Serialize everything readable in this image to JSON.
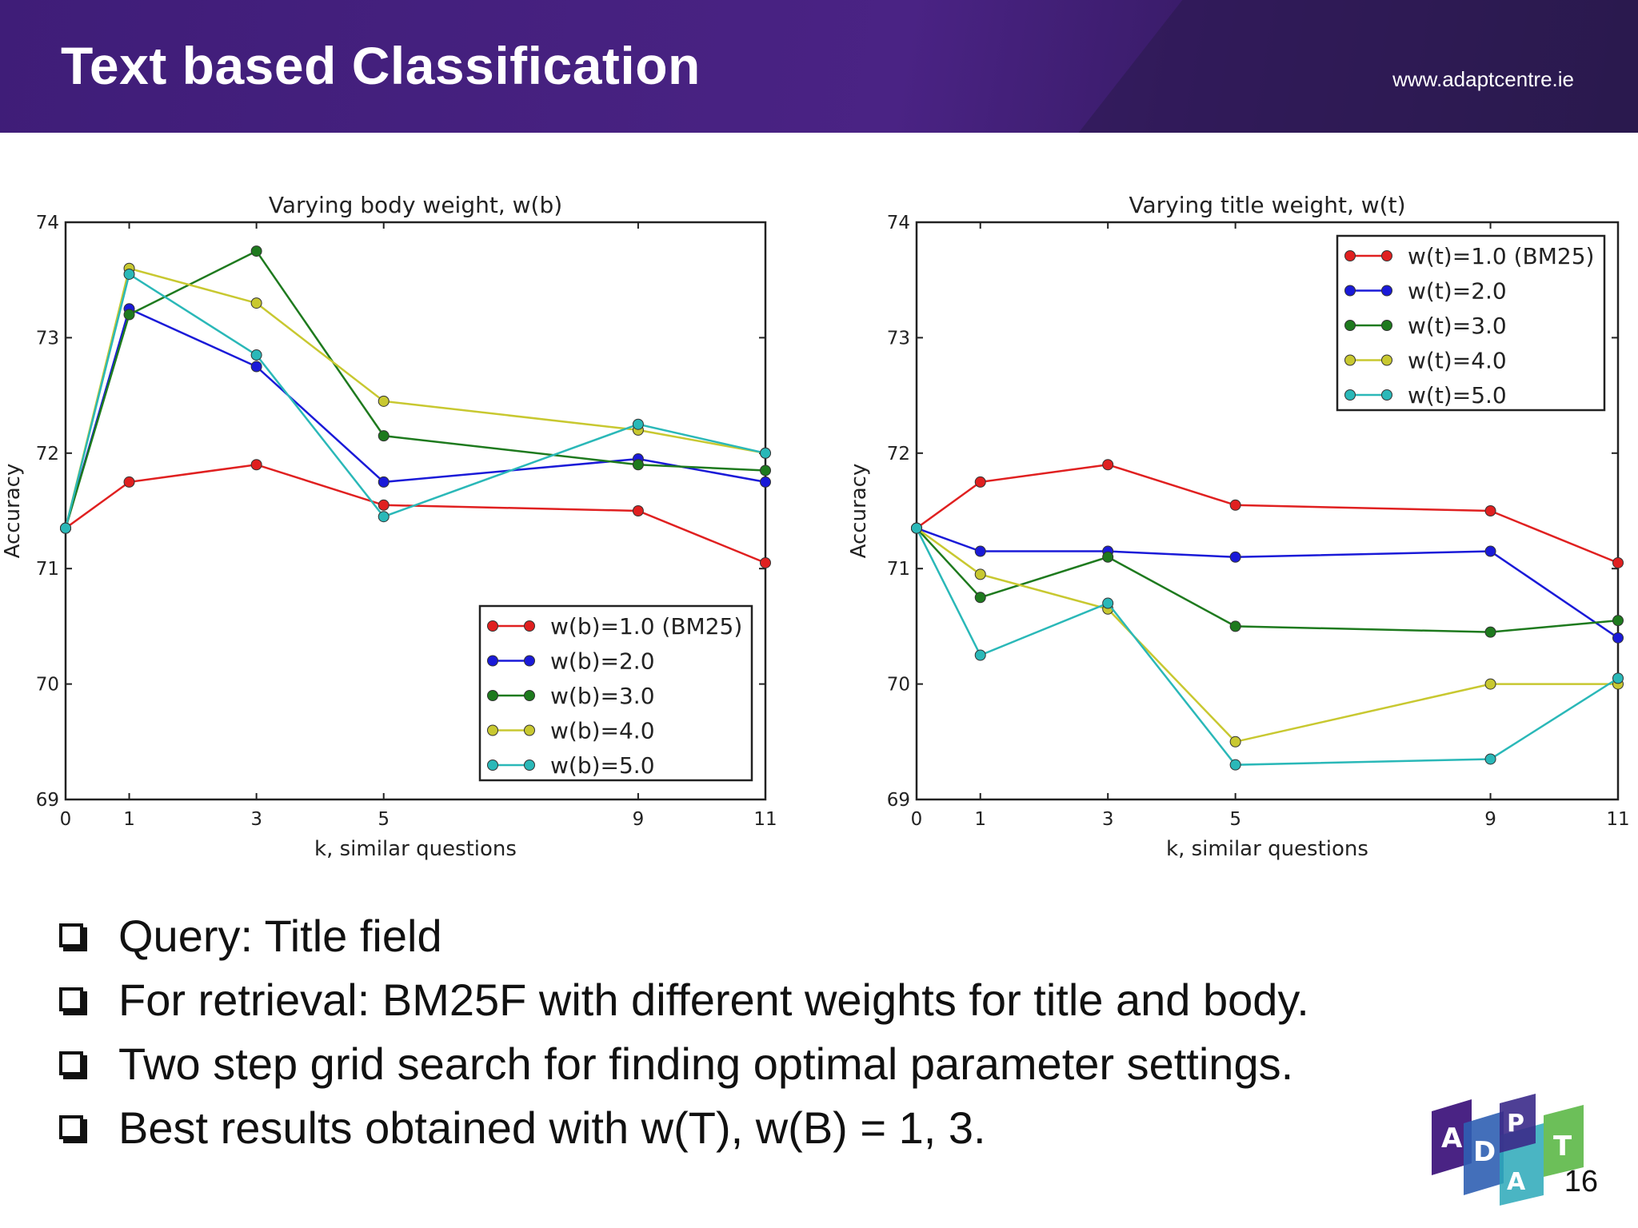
{
  "header": {
    "title": "Text based Classification",
    "site": "www.adaptcentre.ie"
  },
  "chart_data": [
    {
      "type": "line",
      "title": "Varying body weight, w(b)",
      "xlabel": "k, similar questions",
      "ylabel": "Accuracy",
      "x": [
        0,
        1,
        3,
        5,
        9,
        11
      ],
      "xticks": [
        "0",
        "1",
        "3",
        "5",
        "9",
        "11"
      ],
      "yticks": [
        "69",
        "70",
        "71",
        "72",
        "73",
        "74"
      ],
      "ylim": [
        69,
        74
      ],
      "legend_position": "lower-right",
      "series": [
        {
          "name": "w(b)=1.0 (BM25)",
          "color": "#e02020",
          "values": [
            71.35,
            71.75,
            71.9,
            71.55,
            71.5,
            71.05
          ]
        },
        {
          "name": "w(b)=2.0",
          "color": "#1a1ad8",
          "values": [
            71.35,
            73.25,
            72.75,
            71.75,
            71.95,
            71.75
          ]
        },
        {
          "name": "w(b)=3.0",
          "color": "#1e7a1e",
          "values": [
            71.35,
            73.2,
            73.75,
            72.15,
            71.9,
            71.85
          ]
        },
        {
          "name": "w(b)=4.0",
          "color": "#c8c830",
          "values": [
            71.35,
            73.6,
            73.3,
            72.45,
            72.2,
            72.0
          ]
        },
        {
          "name": "w(b)=5.0",
          "color": "#2ab8b8",
          "values": [
            71.35,
            73.55,
            72.85,
            71.45,
            72.25,
            72.0
          ]
        }
      ]
    },
    {
      "type": "line",
      "title": "Varying title weight, w(t)",
      "xlabel": "k, similar questions",
      "ylabel": "Accuracy",
      "x": [
        0,
        1,
        3,
        5,
        9,
        11
      ],
      "xticks": [
        "0",
        "1",
        "3",
        "5",
        "9",
        "11"
      ],
      "yticks": [
        "69",
        "70",
        "71",
        "72",
        "73",
        "74"
      ],
      "ylim": [
        69,
        74
      ],
      "legend_position": "upper-right",
      "series": [
        {
          "name": "w(t)=1.0 (BM25)",
          "color": "#e02020",
          "values": [
            71.35,
            71.75,
            71.9,
            71.55,
            71.5,
            71.05
          ]
        },
        {
          "name": "w(t)=2.0",
          "color": "#1a1ad8",
          "values": [
            71.35,
            71.15,
            71.15,
            71.1,
            71.15,
            70.4
          ]
        },
        {
          "name": "w(t)=3.0",
          "color": "#1e7a1e",
          "values": [
            71.35,
            70.75,
            71.1,
            70.5,
            70.45,
            70.55
          ]
        },
        {
          "name": "w(t)=4.0",
          "color": "#c8c830",
          "values": [
            71.35,
            70.95,
            70.65,
            69.5,
            70.0,
            70.0
          ]
        },
        {
          "name": "w(t)=5.0",
          "color": "#2ab8b8",
          "values": [
            71.35,
            70.25,
            70.7,
            69.3,
            69.35,
            70.05
          ]
        }
      ]
    }
  ],
  "bullets": [
    "Query: Title field",
    "For retrieval: BM25F with different weights for title and body.",
    "Two step grid search for finding optimal parameter settings.",
    "Best results obtained with w(T), w(B) = 1, 3."
  ],
  "logo": {
    "letters": [
      "A",
      "D",
      "A",
      "P",
      "T"
    ]
  },
  "page_number": "16"
}
